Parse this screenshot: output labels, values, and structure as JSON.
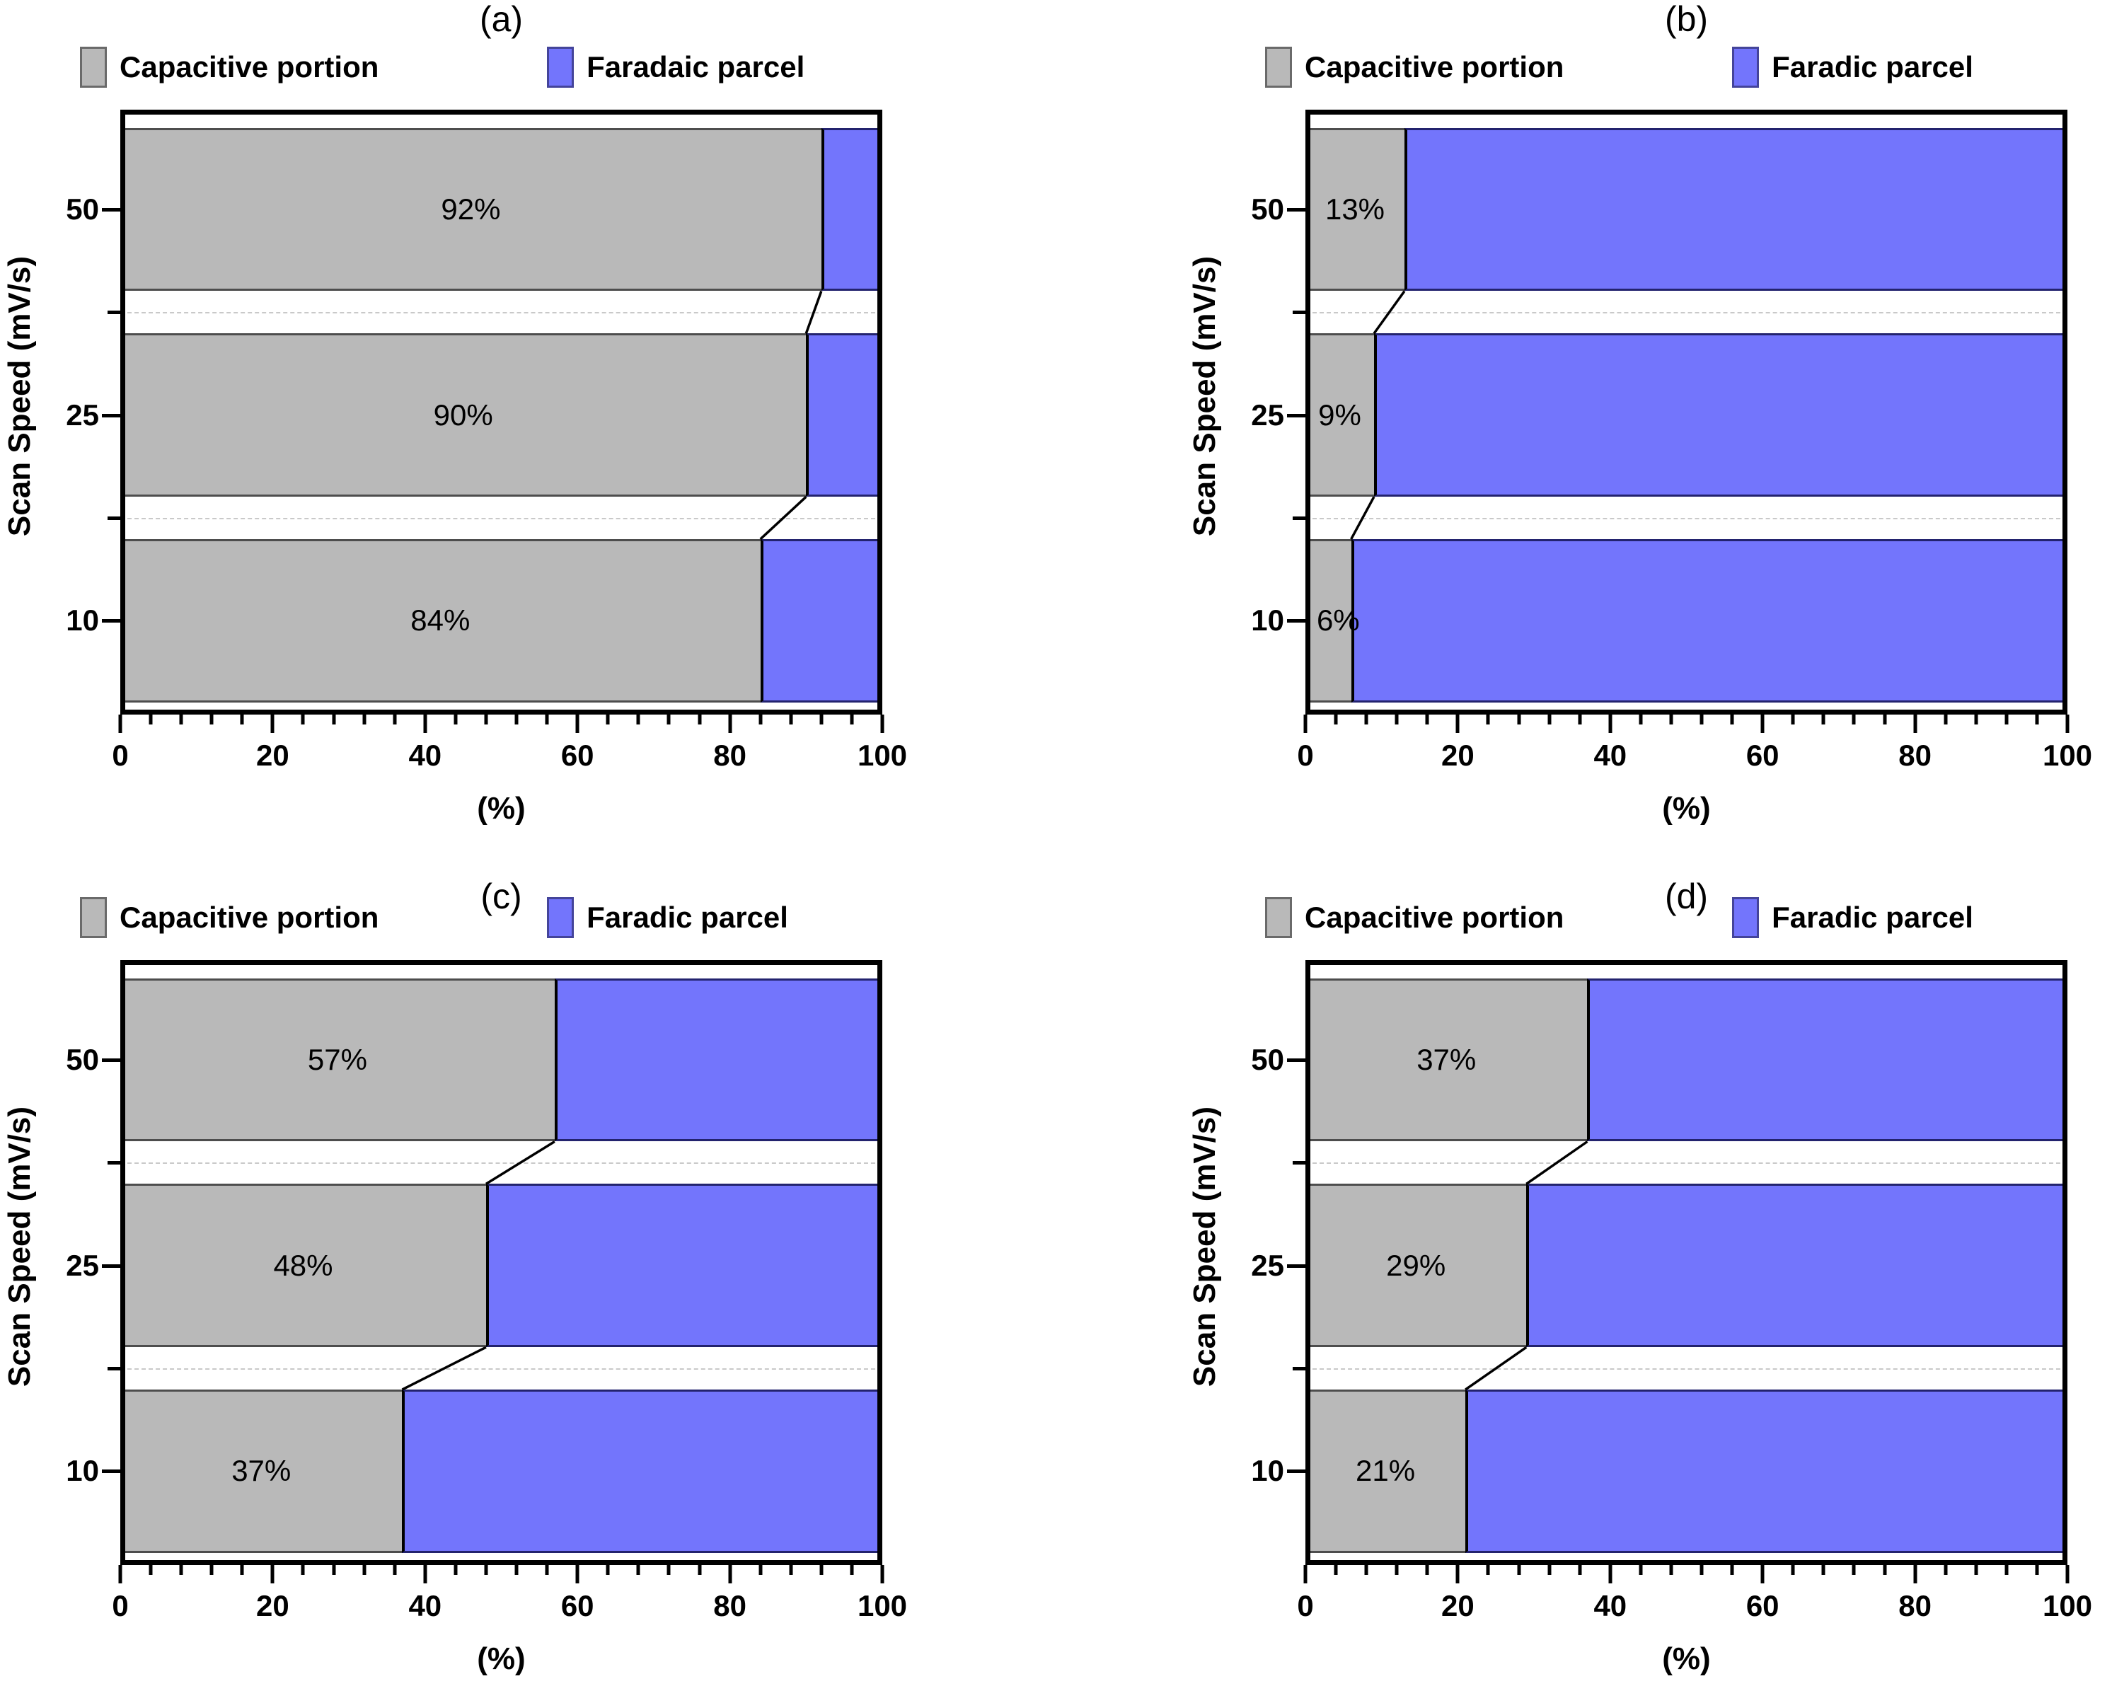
{
  "figure": {
    "background": "#ffffff",
    "description_labels": [
      "(a)",
      "(b)",
      "(c)",
      "(d)"
    ]
  },
  "colors": {
    "capacitive_fill": "#B9B9B9",
    "capacitive_border": "#4d4d4d",
    "faradaic_fill": "#7375FC",
    "faradaic_border": "#23236e",
    "divider": "#000000",
    "frame": "#000000",
    "dashed_gridline": "#c9c9c9",
    "connector": "#000000"
  },
  "axis": {
    "x_minor_step": 4,
    "x_label": "(%)",
    "y_label": "Scan Speed (mV/s)"
  },
  "chart_data": [
    {
      "panel": "(a)",
      "type": "bar",
      "orientation": "horizontal-stacked",
      "categories": [
        "50",
        "25",
        "10"
      ],
      "series": [
        {
          "name": "Capacitive portion",
          "color": "#B9B9B9",
          "values": [
            92,
            90,
            84
          ]
        },
        {
          "name": "Faradaic parcel",
          "color": "#7375FC",
          "values": [
            8,
            10,
            16
          ]
        }
      ],
      "bar_labels": [
        "92%",
        "90%",
        "84%"
      ],
      "xlabel": "(%)",
      "ylabel": "Scan Speed (mV/s)",
      "xlim": [
        0,
        100
      ],
      "x_ticks": [
        0,
        20,
        40,
        60,
        80,
        100
      ],
      "legend_position": "top",
      "grid": "dashed horizontal lines between bars"
    },
    {
      "panel": "(b)",
      "type": "bar",
      "orientation": "horizontal-stacked",
      "categories": [
        "50",
        "25",
        "10"
      ],
      "series": [
        {
          "name": "Capacitive portion",
          "color": "#B9B9B9",
          "values": [
            13,
            9,
            6
          ]
        },
        {
          "name": "Faradic parcel",
          "color": "#7375FC",
          "values": [
            87,
            91,
            94
          ]
        }
      ],
      "bar_labels": [
        "13%",
        "9%",
        "6%"
      ],
      "xlabel": "(%)",
      "ylabel": "Scan Speed (mV/s)",
      "xlim": [
        0,
        100
      ],
      "x_ticks": [
        0,
        20,
        40,
        60,
        80,
        100
      ],
      "legend_position": "top",
      "grid": "dashed horizontal lines between bars"
    },
    {
      "panel": "(c)",
      "type": "bar",
      "orientation": "horizontal-stacked",
      "categories": [
        "50",
        "25",
        "10"
      ],
      "series": [
        {
          "name": "Capacitive portion",
          "color": "#B9B9B9",
          "values": [
            57,
            48,
            37
          ]
        },
        {
          "name": "Faradic parcel",
          "color": "#7375FC",
          "values": [
            43,
            52,
            63
          ]
        }
      ],
      "bar_labels": [
        "57%",
        "48%",
        "37%"
      ],
      "xlabel": "(%)",
      "ylabel": "Scan Speed (mV/s)",
      "xlim": [
        0,
        100
      ],
      "x_ticks": [
        0,
        20,
        40,
        60,
        80,
        100
      ],
      "legend_position": "top",
      "grid": "dashed horizontal lines between bars"
    },
    {
      "panel": "(d)",
      "type": "bar",
      "orientation": "horizontal-stacked",
      "categories": [
        "50",
        "25",
        "10"
      ],
      "series": [
        {
          "name": "Capacitive portion",
          "color": "#B9B9B9",
          "values": [
            37,
            29,
            21
          ]
        },
        {
          "name": "Faradic parcel",
          "color": "#7375FC",
          "values": [
            63,
            71,
            79
          ]
        }
      ],
      "bar_labels": [
        "37%",
        "29%",
        "21%"
      ],
      "xlabel": "(%)",
      "ylabel": "Scan Speed (mV/s)",
      "xlim": [
        0,
        100
      ],
      "x_ticks": [
        0,
        20,
        40,
        60,
        80,
        100
      ],
      "legend_position": "top",
      "grid": "dashed horizontal lines between bars"
    }
  ]
}
